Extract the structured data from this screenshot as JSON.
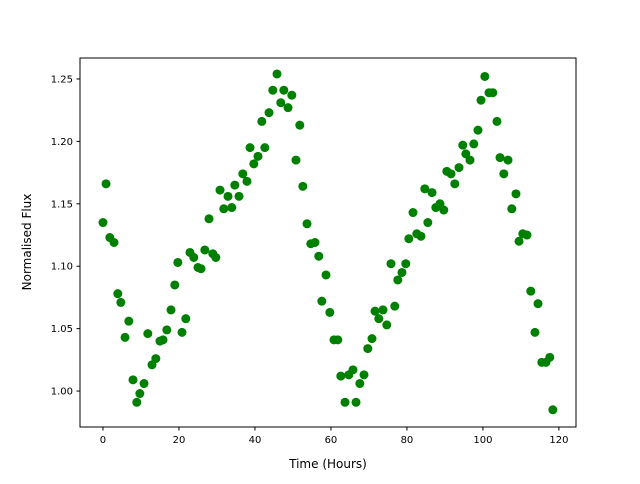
{
  "chart_data": {
    "type": "scatter",
    "title": "",
    "xlabel": "Time (Hours)",
    "ylabel": "Normalised Flux",
    "xlim": [
      -6.05,
      124.5
    ],
    "ylim": [
      0.9712,
      1.2668
    ],
    "xticks": [
      0,
      20,
      40,
      60,
      80,
      100,
      120
    ],
    "xtick_labels": [
      "0",
      "20",
      "40",
      "60",
      "80",
      "100",
      "120"
    ],
    "yticks": [
      1.0,
      1.05,
      1.1,
      1.15,
      1.2,
      1.25
    ],
    "ytick_labels": [
      "1.00",
      "1.05",
      "1.10",
      "1.15",
      "1.20",
      "1.25"
    ],
    "grid": false,
    "marker_color": "#008000",
    "points": [
      [
        0,
        1.135
      ],
      [
        0.8,
        1.166
      ],
      [
        1.8,
        1.123
      ],
      [
        2.9,
        1.119
      ],
      [
        3.9,
        1.078
      ],
      [
        4.7,
        1.071
      ],
      [
        5.8,
        1.043
      ],
      [
        6.8,
        1.056
      ],
      [
        7.9,
        1.009
      ],
      [
        8.9,
        0.991
      ],
      [
        9.7,
        0.998
      ],
      [
        10.8,
        1.006
      ],
      [
        11.8,
        1.046
      ],
      [
        12.9,
        1.021
      ],
      [
        13.9,
        1.026
      ],
      [
        15.0,
        1.04
      ],
      [
        15.8,
        1.041
      ],
      [
        16.8,
        1.049
      ],
      [
        17.9,
        1.065
      ],
      [
        18.9,
        1.085
      ],
      [
        19.7,
        1.103
      ],
      [
        20.8,
        1.047
      ],
      [
        21.8,
        1.058
      ],
      [
        22.9,
        1.111
      ],
      [
        23.9,
        1.107
      ],
      [
        25.0,
        1.099
      ],
      [
        25.8,
        1.098
      ],
      [
        26.8,
        1.113
      ],
      [
        27.9,
        1.138
      ],
      [
        28.9,
        1.11
      ],
      [
        29.7,
        1.107
      ],
      [
        30.8,
        1.161
      ],
      [
        31.8,
        1.146
      ],
      [
        32.9,
        1.156
      ],
      [
        33.9,
        1.147
      ],
      [
        34.7,
        1.165
      ],
      [
        35.8,
        1.156
      ],
      [
        36.8,
        1.174
      ],
      [
        37.9,
        1.168
      ],
      [
        38.7,
        1.195
      ],
      [
        39.7,
        1.182
      ],
      [
        40.8,
        1.188
      ],
      [
        41.8,
        1.216
      ],
      [
        42.6,
        1.195
      ],
      [
        43.7,
        1.223
      ],
      [
        44.7,
        1.241
      ],
      [
        45.8,
        1.254
      ],
      [
        46.8,
        1.231
      ],
      [
        47.6,
        1.241
      ],
      [
        48.7,
        1.227
      ],
      [
        49.7,
        1.237
      ],
      [
        50.8,
        1.185
      ],
      [
        51.8,
        1.213
      ],
      [
        52.6,
        1.164
      ],
      [
        53.7,
        1.134
      ],
      [
        54.7,
        1.118
      ],
      [
        55.8,
        1.119
      ],
      [
        56.8,
        1.108
      ],
      [
        57.6,
        1.072
      ],
      [
        58.7,
        1.093
      ],
      [
        59.7,
        1.063
      ],
      [
        60.8,
        1.041
      ],
      [
        61.8,
        1.041
      ],
      [
        62.6,
        1.012
      ],
      [
        63.7,
        0.991
      ],
      [
        64.7,
        1.013
      ],
      [
        65.8,
        1.017
      ],
      [
        66.6,
        0.991
      ],
      [
        67.6,
        1.006
      ],
      [
        68.7,
        1.013
      ],
      [
        69.7,
        1.034
      ],
      [
        70.8,
        1.042
      ],
      [
        71.6,
        1.064
      ],
      [
        72.6,
        1.058
      ],
      [
        73.7,
        1.065
      ],
      [
        74.7,
        1.053
      ],
      [
        75.8,
        1.102
      ],
      [
        76.8,
        1.068
      ],
      [
        77.6,
        1.089
      ],
      [
        78.7,
        1.095
      ],
      [
        79.7,
        1.102
      ],
      [
        80.5,
        1.122
      ],
      [
        81.6,
        1.143
      ],
      [
        82.6,
        1.126
      ],
      [
        83.7,
        1.124
      ],
      [
        84.7,
        1.162
      ],
      [
        85.5,
        1.135
      ],
      [
        86.6,
        1.159
      ],
      [
        87.6,
        1.147
      ],
      [
        88.7,
        1.15
      ],
      [
        89.7,
        1.145
      ],
      [
        90.5,
        1.176
      ],
      [
        91.6,
        1.174
      ],
      [
        92.6,
        1.166
      ],
      [
        93.7,
        1.179
      ],
      [
        94.7,
        1.197
      ],
      [
        95.5,
        1.19
      ],
      [
        96.6,
        1.185
      ],
      [
        97.6,
        1.198
      ],
      [
        98.7,
        1.209
      ],
      [
        99.5,
        1.233
      ],
      [
        100.5,
        1.252
      ],
      [
        101.6,
        1.239
      ],
      [
        102.6,
        1.239
      ],
      [
        103.7,
        1.216
      ],
      [
        104.5,
        1.187
      ],
      [
        105.5,
        1.174
      ],
      [
        106.6,
        1.185
      ],
      [
        107.6,
        1.146
      ],
      [
        108.7,
        1.158
      ],
      [
        109.5,
        1.12
      ],
      [
        110.5,
        1.126
      ],
      [
        111.6,
        1.125
      ],
      [
        112.6,
        1.08
      ],
      [
        113.7,
        1.047
      ],
      [
        114.5,
        1.07
      ],
      [
        115.5,
        1.023
      ],
      [
        116.6,
        1.023
      ],
      [
        117.6,
        1.027
      ],
      [
        118.4,
        0.985
      ]
    ]
  }
}
